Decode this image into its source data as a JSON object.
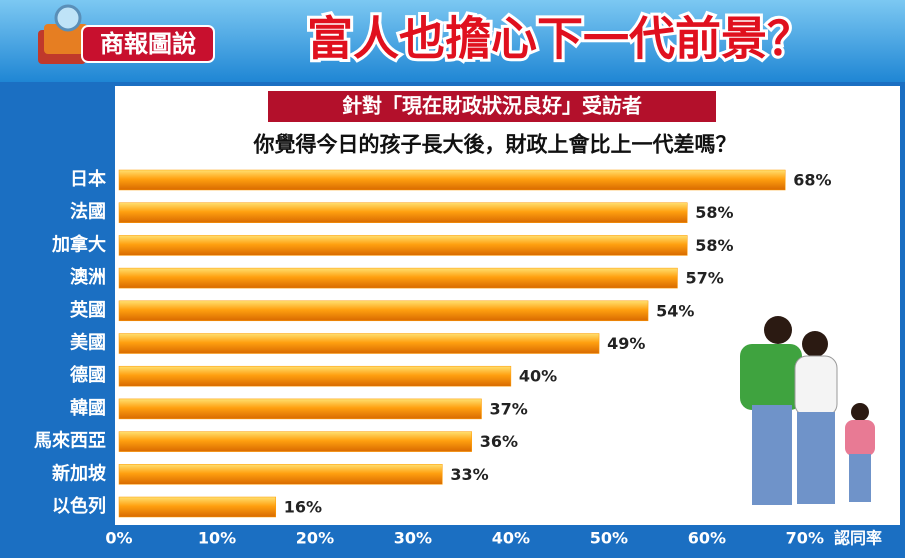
{
  "logo": "商報圖說",
  "chart_data": {
    "type": "bar",
    "orientation": "horizontal",
    "title": "富人也擔心下一代前景？",
    "subtitle": "針對「現在財政狀況良好」受訪者",
    "question": "你覺得今日的孩子長大後，財政上會比上一代差嗎？",
    "xlabel": "認同率",
    "categories": [
      "日本",
      "法國",
      "加拿大",
      "澳洲",
      "英國",
      "美國",
      "德國",
      "韓國",
      "馬來西亞",
      "新加坡",
      "以色列"
    ],
    "values": [
      68,
      58,
      58,
      57,
      54,
      49,
      40,
      37,
      36,
      33,
      16
    ],
    "value_labels": [
      "68%",
      "58%",
      "58%",
      "57%",
      "54%",
      "49%",
      "40%",
      "37%",
      "36%",
      "33%",
      "16%"
    ],
    "color": "#ff9a00",
    "xlim": [
      0,
      79
    ],
    "xticks": [
      {
        "value": 0,
        "label": "0%"
      },
      {
        "value": 10,
        "label": "10%"
      },
      {
        "value": 20,
        "label": "20%"
      },
      {
        "value": 30,
        "label": "30%"
      },
      {
        "value": 40,
        "label": "40%"
      },
      {
        "value": 50,
        "label": "50%"
      },
      {
        "value": 60,
        "label": "60%"
      },
      {
        "value": 70,
        "label": "70%"
      }
    ],
    "grid": false
  }
}
